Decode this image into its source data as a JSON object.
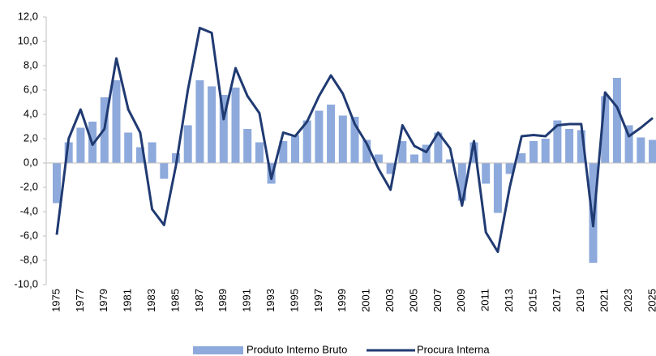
{
  "chart_data": {
    "type": "bar",
    "categories": [
      "1975",
      null,
      "1977",
      null,
      "1979",
      null,
      "1981",
      null,
      "1983",
      null,
      "1985",
      null,
      "1987",
      null,
      "1989",
      null,
      "1991",
      null,
      "1993",
      null,
      "1995",
      null,
      "1997",
      null,
      "1999",
      null,
      "2001",
      null,
      "2003",
      null,
      "2005",
      null,
      "2007",
      null,
      "2009",
      null,
      "2011",
      null,
      "2013",
      null,
      "2015",
      null,
      "2017",
      null,
      "2019",
      null,
      "2021",
      null,
      "2023",
      null,
      "2025"
    ],
    "series": [
      {
        "name": "Produto Interno Bruto",
        "type": "bar",
        "color": "#8eaadc",
        "values": [
          -3.3,
          1.7,
          2.9,
          3.4,
          5.4,
          6.8,
          2.5,
          1.3,
          1.7,
          -1.3,
          0.8,
          3.1,
          6.8,
          6.3,
          5.6,
          6.2,
          2.8,
          1.7,
          -1.7,
          1.8,
          2.3,
          3.5,
          4.3,
          4.8,
          3.9,
          3.8,
          1.9,
          0.7,
          -0.9,
          1.8,
          0.7,
          1.5,
          2.5,
          0.3,
          -3.1,
          1.7,
          -1.7,
          -4.1,
          -0.9,
          0.8,
          1.8,
          2.0,
          3.5,
          2.8,
          2.7,
          -8.2,
          5.5,
          7.0,
          3.1,
          2.1,
          1.9
        ]
      },
      {
        "name": "Procura Interna",
        "type": "line",
        "color": "#203a72",
        "values": [
          -5.9,
          2.0,
          4.4,
          1.5,
          2.8,
          8.6,
          4.4,
          2.5,
          -3.8,
          -5.1,
          -0.2,
          6.0,
          11.1,
          10.7,
          3.6,
          7.8,
          5.5,
          4.1,
          -1.3,
          2.5,
          2.2,
          3.4,
          5.5,
          7.2,
          5.7,
          3.2,
          1.6,
          -0.5,
          -2.2,
          3.1,
          1.4,
          0.9,
          2.5,
          1.2,
          -3.5,
          1.8,
          -5.7,
          -7.3,
          -2.0,
          2.2,
          2.3,
          2.2,
          3.1,
          3.2,
          3.2,
          -5.2,
          5.8,
          4.6,
          2.2,
          2.9,
          3.7
        ]
      }
    ],
    "ylim": [
      -10,
      12
    ],
    "yticks": [
      {
        "value": -10,
        "label": "-10,0"
      },
      {
        "value": -8,
        "label": "-8,0"
      },
      {
        "value": -6,
        "label": "-6,0"
      },
      {
        "value": -4,
        "label": "-4,0"
      },
      {
        "value": -2,
        "label": "-2,0"
      },
      {
        "value": 0,
        "label": "0,0"
      },
      {
        "value": 2,
        "label": "2,0"
      },
      {
        "value": 4,
        "label": "4,0"
      },
      {
        "value": 6,
        "label": "6,0"
      },
      {
        "value": 8,
        "label": "8,0"
      },
      {
        "value": 10,
        "label": "10,0"
      },
      {
        "value": 12,
        "label": "12,0"
      }
    ],
    "legend": "bottom"
  }
}
